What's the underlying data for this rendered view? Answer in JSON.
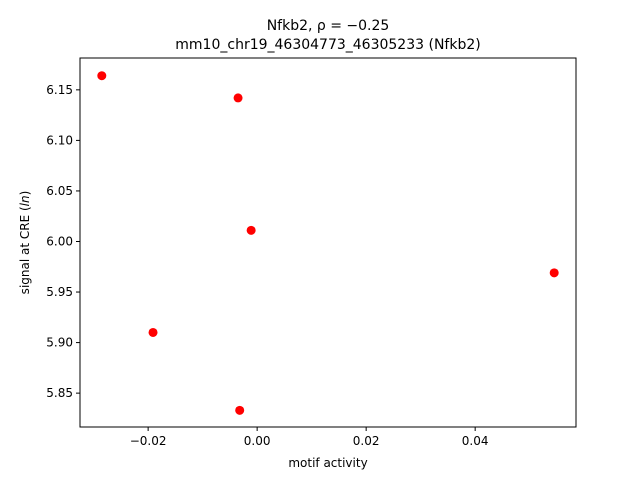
{
  "chart_data": {
    "type": "scatter",
    "title_line1": "Nfkb2, ρ = −0.25",
    "title_line2": "mm10_chr19_46304773_46305233 (Nfkb2)",
    "xlabel": "motif activity",
    "ylabel": "signal at CRE (ln)",
    "xlim": [
      -0.0325,
      0.0585
    ],
    "ylim": [
      5.8165,
      6.1815
    ],
    "xticks": [
      -0.02,
      0.0,
      0.02,
      0.04
    ],
    "xtick_labels": [
      "−0.02",
      "0.00",
      "0.02",
      "0.04"
    ],
    "yticks": [
      5.85,
      5.9,
      5.95,
      6.0,
      6.05,
      6.1,
      6.15
    ],
    "ytick_labels": [
      "5.85",
      "5.90",
      "5.95",
      "6.00",
      "6.05",
      "6.10",
      "6.15"
    ],
    "grid": false,
    "marker_color": "#ff0000",
    "points": [
      {
        "x": -0.0285,
        "y": 6.164
      },
      {
        "x": -0.0035,
        "y": 6.142
      },
      {
        "x": -0.0011,
        "y": 6.011
      },
      {
        "x": 0.0545,
        "y": 5.969
      },
      {
        "x": -0.0191,
        "y": 5.91
      },
      {
        "x": -0.0032,
        "y": 5.833
      }
    ]
  }
}
